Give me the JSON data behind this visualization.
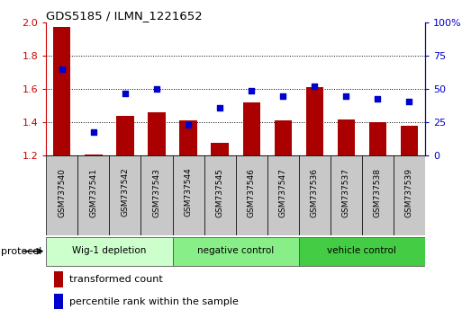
{
  "title": "GDS5185 / ILMN_1221652",
  "samples": [
    "GSM737540",
    "GSM737541",
    "GSM737542",
    "GSM737543",
    "GSM737544",
    "GSM737545",
    "GSM737546",
    "GSM737547",
    "GSM737536",
    "GSM737537",
    "GSM737538",
    "GSM737539"
  ],
  "bar_heights": [
    1.97,
    1.21,
    1.44,
    1.46,
    1.41,
    1.28,
    1.52,
    1.41,
    1.61,
    1.42,
    1.4,
    1.38
  ],
  "percentile_ranks": [
    65,
    18,
    47,
    50,
    23,
    36,
    49,
    45,
    52,
    45,
    43,
    41
  ],
  "bar_color": "#aa0000",
  "dot_color": "#0000cc",
  "ylim_left": [
    1.2,
    2.0
  ],
  "ylim_right": [
    0,
    100
  ],
  "yticks_left": [
    1.2,
    1.4,
    1.6,
    1.8,
    2.0
  ],
  "yticks_right": [
    0,
    25,
    50,
    75,
    100
  ],
  "ytick_labels_right": [
    "0",
    "25",
    "50",
    "75",
    "100%"
  ],
  "groups": [
    {
      "label": "Wig-1 depletion",
      "start": 0,
      "end": 4,
      "color": "#ccffcc"
    },
    {
      "label": "negative control",
      "start": 4,
      "end": 8,
      "color": "#88ee88"
    },
    {
      "label": "vehicle control",
      "start": 8,
      "end": 12,
      "color": "#44cc44"
    }
  ],
  "protocol_label": "protocol",
  "legend_bar_label": "transformed count",
  "legend_dot_label": "percentile rank within the sample",
  "background_color": "#ffffff",
  "plot_bg_color": "#ffffff",
  "tick_label_color_left": "#cc0000",
  "tick_label_color_right": "#0000cc",
  "bar_bottom": 1.2,
  "bar_width": 0.55,
  "sample_box_color": "#c8c8c8"
}
